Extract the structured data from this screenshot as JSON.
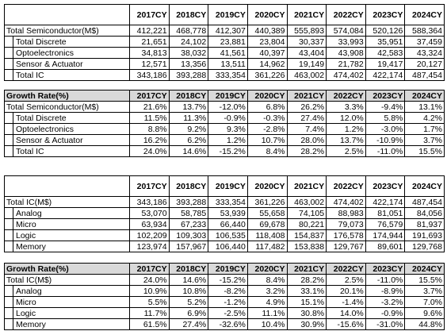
{
  "tables": [
    {
      "columns": [
        "2017CY",
        "2018CY",
        "2019CY",
        "2020CY",
        "2021CY",
        "2022CY",
        "2023CY",
        "2024CY"
      ],
      "rows": [
        {
          "label": "Total Semiconductor(M$)",
          "values": [
            "412,221",
            "468,778",
            "412,307",
            "440,389",
            "555,893",
            "574,084",
            "520,126",
            "588,364"
          ]
        },
        {
          "label": "Total Discrete",
          "values": [
            "21,651",
            "24,102",
            "23,881",
            "23,804",
            "30,337",
            "33,993",
            "35,951",
            "37,459"
          ]
        },
        {
          "label": "Optoelectronics",
          "values": [
            "34,813",
            "38,032",
            "41,561",
            "40,397",
            "43,404",
            "43,908",
            "42,583",
            "43,324"
          ]
        },
        {
          "label": "Sensor & Actuator",
          "values": [
            "12,571",
            "13,356",
            "13,511",
            "14,962",
            "19,149",
            "21,782",
            "19,417",
            "20,127"
          ]
        },
        {
          "label": "Total IC",
          "values": [
            "343,186",
            "393,288",
            "333,354",
            "361,226",
            "463,002",
            "474,402",
            "422,174",
            "487,454"
          ]
        }
      ]
    },
    {
      "title": "Growth Rate(%)",
      "columns": [
        "2017CY",
        "2018CY",
        "2019CY",
        "2020CY",
        "2021CY",
        "2022CY",
        "2023CY",
        "2024CY"
      ],
      "rows": [
        {
          "label": "Total Semiconductor(M$)",
          "values": [
            "21.6%",
            "13.7%",
            "-12.0%",
            "6.8%",
            "26.2%",
            "3.3%",
            "-9.4%",
            "13.1%"
          ]
        },
        {
          "label": "Total Discrete",
          "values": [
            "11.5%",
            "11.3%",
            "-0.9%",
            "-0.3%",
            "27.4%",
            "12.0%",
            "5.8%",
            "4.2%"
          ]
        },
        {
          "label": "Optoelectronics",
          "values": [
            "8.8%",
            "9.2%",
            "9.3%",
            "-2.8%",
            "7.4%",
            "1.2%",
            "-3.0%",
            "1.7%"
          ]
        },
        {
          "label": "Sensor & Actuator",
          "values": [
            "16.2%",
            "6.2%",
            "1.2%",
            "10.7%",
            "28.0%",
            "13.7%",
            "-10.9%",
            "3.7%"
          ]
        },
        {
          "label": "Total IC",
          "values": [
            "24.0%",
            "14.6%",
            "-15.2%",
            "8.4%",
            "28.2%",
            "2.5%",
            "-11.0%",
            "15.5%"
          ]
        }
      ]
    },
    {
      "columns": [
        "2017CY",
        "2018CY",
        "2019CY",
        "2020CY",
        "2021CY",
        "2022CY",
        "2023CY",
        "2024CY"
      ],
      "rows": [
        {
          "label": "Total IC(M$)",
          "values": [
            "343,186",
            "393,288",
            "333,354",
            "361,226",
            "463,002",
            "474,402",
            "422,174",
            "487,454"
          ]
        },
        {
          "label": "Analog",
          "values": [
            "53,070",
            "58,785",
            "53,939",
            "55,658",
            "74,105",
            "88,983",
            "81,051",
            "84,056"
          ]
        },
        {
          "label": "Micro",
          "values": [
            "63,934",
            "67,233",
            "66,440",
            "69,678",
            "80,221",
            "79,073",
            "76,579",
            "81,937"
          ]
        },
        {
          "label": "Logic",
          "values": [
            "102,209",
            "109,303",
            "106,535",
            "118,408",
            "154,837",
            "176,578",
            "174,944",
            "191,693"
          ]
        },
        {
          "label": "Memory",
          "values": [
            "123,974",
            "157,967",
            "106,440",
            "117,482",
            "153,838",
            "129,767",
            "89,601",
            "129,768"
          ]
        }
      ]
    },
    {
      "title": "Growth Rate(%)",
      "columns": [
        "2017CY",
        "2018CY",
        "2019CY",
        "2020CY",
        "2021CY",
        "2022CY",
        "2023CY",
        "2024CY"
      ],
      "rows": [
        {
          "label": "Total IC(M$)",
          "values": [
            "24.0%",
            "14.6%",
            "-15.2%",
            "8.4%",
            "28.2%",
            "2.5%",
            "-11.0%",
            "15.5%"
          ]
        },
        {
          "label": "Analog",
          "values": [
            "10.9%",
            "10.8%",
            "-8.2%",
            "3.2%",
            "33.1%",
            "20.1%",
            "-8.9%",
            "3.7%"
          ]
        },
        {
          "label": "Micro",
          "values": [
            "5.5%",
            "5.2%",
            "-1.2%",
            "4.9%",
            "15.1%",
            "-1.4%",
            "-3.2%",
            "7.0%"
          ]
        },
        {
          "label": "Logic",
          "values": [
            "11.7%",
            "6.9%",
            "-2.5%",
            "11.1%",
            "30.8%",
            "14.0%",
            "-0.9%",
            "9.6%"
          ]
        },
        {
          "label": "Memory",
          "values": [
            "61.5%",
            "27.4%",
            "-32.6%",
            "10.4%",
            "30.9%",
            "-15.6%",
            "-31.0%",
            "44.8%"
          ]
        }
      ]
    }
  ]
}
